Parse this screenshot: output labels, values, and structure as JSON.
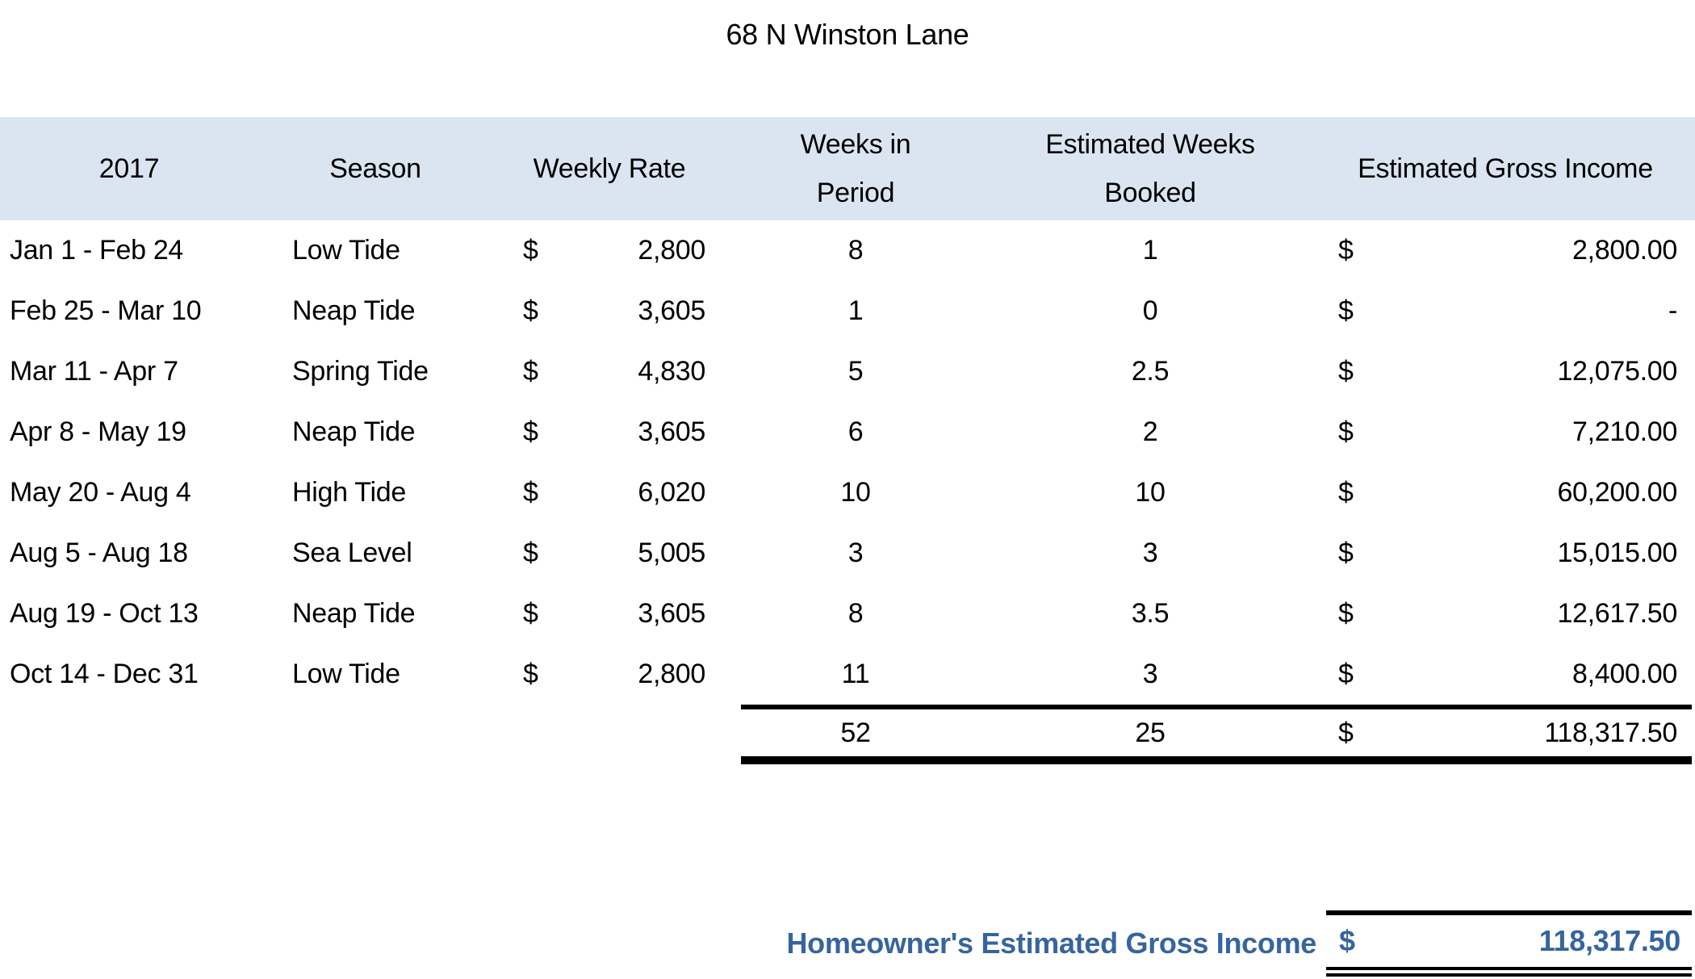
{
  "title": "68 N Winston Lane",
  "currency_symbol": "$",
  "colors": {
    "header_bg": "#dbe5f1",
    "accent_blue": "#36649e",
    "text": "#000000",
    "border": "#000000",
    "background": "#ffffff"
  },
  "table": {
    "headers": {
      "year": "2017",
      "season": "Season",
      "weekly_rate": "Weekly Rate",
      "weeks_line1": "Weeks in",
      "weeks_line2": "Period",
      "booked_line1": "Estimated Weeks",
      "booked_line2": "Booked",
      "gross_income": "Estimated Gross Income"
    },
    "rows": [
      {
        "period": "Jan 1 - Feb 24",
        "season": "Low Tide",
        "rate": "2,800",
        "weeks": "8",
        "booked": "1",
        "income": "2,800.00"
      },
      {
        "period": "Feb 25 - Mar 10",
        "season": "Neap Tide",
        "rate": "3,605",
        "weeks": "1",
        "booked": "0",
        "income": "-"
      },
      {
        "period": "Mar 11 - Apr 7",
        "season": "Spring Tide",
        "rate": "4,830",
        "weeks": "5",
        "booked": "2.5",
        "income": "12,075.00"
      },
      {
        "period": "Apr 8 - May 19",
        "season": "Neap Tide",
        "rate": "3,605",
        "weeks": "6",
        "booked": "2",
        "income": "7,210.00"
      },
      {
        "period": "May 20 - Aug 4",
        "season": "High Tide",
        "rate": "6,020",
        "weeks": "10",
        "booked": "10",
        "income": "60,200.00"
      },
      {
        "period": "Aug 5 - Aug 18",
        "season": "Sea Level",
        "rate": "5,005",
        "weeks": "3",
        "booked": "3",
        "income": "15,015.00"
      },
      {
        "period": "Aug 19 - Oct 13",
        "season": "Neap Tide",
        "rate": "3,605",
        "weeks": "8",
        "booked": "3.5",
        "income": "12,617.50"
      },
      {
        "period": "Oct 14 - Dec 31",
        "season": "Low Tide",
        "rate": "2,800",
        "weeks": "11",
        "booked": "3",
        "income": "8,400.00"
      }
    ],
    "totals": {
      "weeks": "52",
      "booked": "25",
      "income": "118,317.50"
    }
  },
  "summary": {
    "label": "Homeowner's Estimated Gross Income",
    "amount": "118,317.50"
  }
}
